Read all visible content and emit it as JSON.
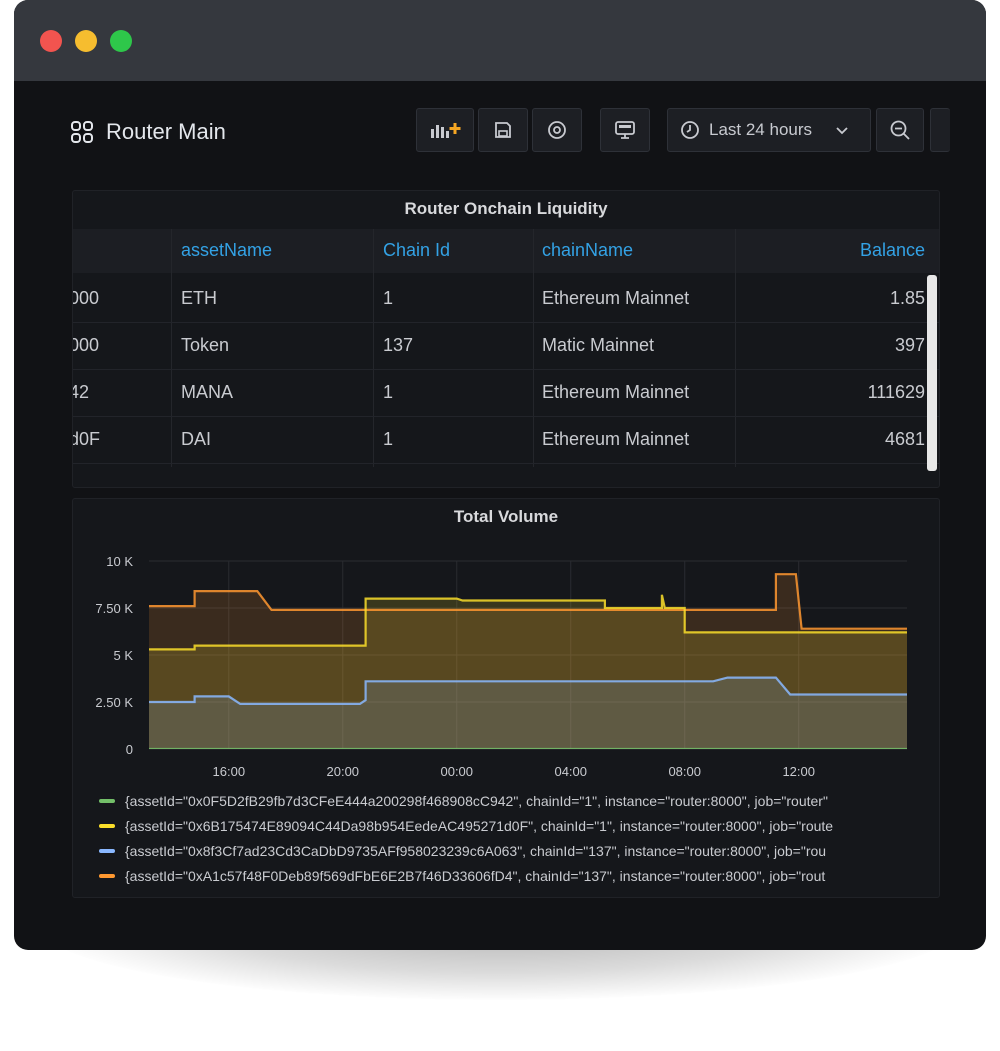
{
  "dashboard": {
    "title": "Router Main",
    "time_range": "Last 24 hours"
  },
  "toolbar": {
    "icons": [
      "add-panel-icon",
      "save-icon",
      "settings-icon",
      "tv-mode-icon",
      "clock-icon",
      "chevron-down-icon",
      "zoom-out-icon"
    ]
  },
  "table_panel": {
    "title": "Router Onchain Liquidity",
    "columns": [
      "",
      "assetName",
      "Chain Id",
      "chainName",
      "Balance"
    ],
    "rows": [
      [
        "000",
        "ETH",
        "1",
        "Ethereum Mainnet",
        "1.85"
      ],
      [
        "000",
        "Token",
        "137",
        "Matic Mainnet",
        "397"
      ],
      [
        "42",
        "MANA",
        "1",
        "Ethereum Mainnet",
        "111629"
      ],
      [
        "d0F",
        "DAI",
        "1",
        "Ethereum Mainnet",
        "4681"
      ]
    ]
  },
  "chart_panel": {
    "title": "Total Volume",
    "legend": [
      {
        "label": "{assetId=\"0x0F5D2fB29fb7d3CFeE444a200298f468908cC942\", chainId=\"1\", instance=\"router:8000\", job=\"router\"",
        "color": "#73bf69"
      },
      {
        "label": "{assetId=\"0x6B175474E89094C44Da98b954EedeAC495271d0F\", chainId=\"1\", instance=\"router:8000\", job=\"route",
        "color": "#fade2a"
      },
      {
        "label": "{assetId=\"0x8f3Cf7ad23Cd3CaDbD9735AFf958023239c6A063\", chainId=\"137\", instance=\"router:8000\", job=\"rou",
        "color": "#8ab8ff"
      },
      {
        "label": "{assetId=\"0xA1c57f48F0Deb89f569dFbE6E2B7f46D33606fD4\", chainId=\"137\", instance=\"router:8000\", job=\"rout",
        "color": "#ff9830"
      }
    ]
  },
  "chart_data": {
    "type": "area",
    "title": "Total Volume",
    "xlabel": "",
    "ylabel": "",
    "x_ticks": [
      "16:00",
      "20:00",
      "00:00",
      "04:00",
      "08:00",
      "12:00"
    ],
    "y_ticks": [
      "0",
      "2.50 K",
      "5 K",
      "7.50 K",
      "10 K"
    ],
    "x_range_hours": [
      13.2,
      39.8
    ],
    "ylim": [
      0,
      10000
    ],
    "grid": true,
    "series": [
      {
        "color": "#73bf69",
        "points": [
          [
            13.2,
            0
          ],
          [
            39.8,
            0
          ]
        ]
      },
      {
        "color": "#fade2a",
        "points": [
          [
            13.2,
            5300
          ],
          [
            14.8,
            5300
          ],
          [
            14.8,
            5500
          ],
          [
            20.8,
            5500
          ],
          [
            20.8,
            8000
          ],
          [
            24.0,
            8000
          ],
          [
            24.2,
            7900
          ],
          [
            29.2,
            7900
          ],
          [
            29.2,
            7500
          ],
          [
            31.2,
            7500
          ],
          [
            31.2,
            8200
          ],
          [
            31.3,
            7500
          ],
          [
            32.0,
            7500
          ],
          [
            32.0,
            6200
          ],
          [
            39.8,
            6200
          ]
        ]
      },
      {
        "color": "#8ab8ff",
        "points": [
          [
            13.2,
            2500
          ],
          [
            14.8,
            2500
          ],
          [
            14.8,
            2800
          ],
          [
            16.0,
            2800
          ],
          [
            16.4,
            2400
          ],
          [
            20.6,
            2400
          ],
          [
            20.8,
            2600
          ],
          [
            20.8,
            3600
          ],
          [
            28.8,
            3600
          ],
          [
            33.0,
            3600
          ],
          [
            33.5,
            3800
          ],
          [
            35.2,
            3800
          ],
          [
            35.7,
            2900
          ],
          [
            39.8,
            2900
          ]
        ]
      },
      {
        "color": "#ff9830",
        "points": [
          [
            13.2,
            7600
          ],
          [
            14.8,
            7600
          ],
          [
            14.8,
            8400
          ],
          [
            17.0,
            8400
          ],
          [
            17.5,
            7400
          ],
          [
            33.0,
            7400
          ],
          [
            35.2,
            7400
          ],
          [
            35.2,
            9300
          ],
          [
            35.9,
            9300
          ],
          [
            36.1,
            6400
          ],
          [
            43.0,
            6400
          ]
        ]
      }
    ]
  }
}
